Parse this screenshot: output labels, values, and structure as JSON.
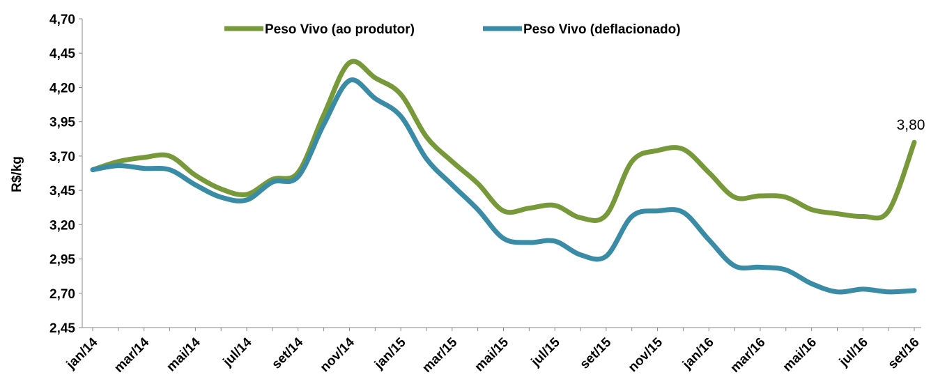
{
  "chart_data": {
    "type": "line",
    "y_label": "R$/kg",
    "categories": [
      "jan/14",
      null,
      "mar/14",
      null,
      "mai/14",
      null,
      "jul/14",
      null,
      "set/14",
      null,
      "nov/14",
      null,
      "jan/15",
      null,
      "mar/15",
      null,
      "mai/15",
      null,
      "jul/15",
      null,
      "set/15",
      null,
      "nov/15",
      null,
      "jan/16",
      null,
      "mar/16",
      null,
      "mai/16",
      null,
      "jul/16",
      null,
      "set/16"
    ],
    "series": [
      {
        "name": "Peso Vivo (ao produtor)",
        "color": "#77993a",
        "values": [
          3.6,
          3.66,
          3.69,
          3.7,
          3.56,
          3.46,
          3.42,
          3.53,
          3.58,
          4.0,
          4.38,
          4.27,
          4.15,
          3.84,
          3.66,
          3.5,
          3.3,
          3.32,
          3.34,
          3.25,
          3.27,
          3.66,
          3.74,
          3.75,
          3.58,
          3.4,
          3.41,
          3.4,
          3.31,
          3.28,
          3.26,
          3.3,
          3.8
        ],
        "value_labels": [
          null,
          null,
          null,
          null,
          null,
          null,
          null,
          null,
          null,
          null,
          null,
          null,
          null,
          null,
          null,
          null,
          null,
          null,
          null,
          null,
          null,
          null,
          null,
          null,
          null,
          null,
          null,
          null,
          null,
          null,
          null,
          null,
          "3,80"
        ]
      },
      {
        "name": "Peso Vivo (deflacionado)",
        "color": "#3a8ca6",
        "values": [
          3.6,
          3.63,
          3.61,
          3.6,
          3.49,
          3.4,
          3.38,
          3.51,
          3.55,
          3.93,
          4.25,
          4.12,
          3.99,
          3.68,
          3.49,
          3.31,
          3.1,
          3.07,
          3.08,
          2.98,
          2.97,
          3.26,
          3.3,
          3.29,
          3.09,
          2.9,
          2.89,
          2.87,
          2.77,
          2.71,
          2.73,
          2.71,
          2.72
        ]
      }
    ],
    "ylim": [
      2.45,
      4.7
    ],
    "yticks": [
      {
        "value": 2.45,
        "label": "2,45"
      },
      {
        "value": 2.7,
        "label": "2,70"
      },
      {
        "value": 2.95,
        "label": "2,95"
      },
      {
        "value": 3.2,
        "label": "3,20"
      },
      {
        "value": 3.45,
        "label": "3,45"
      },
      {
        "value": 3.7,
        "label": "3,70"
      },
      {
        "value": 3.95,
        "label": "3,95"
      },
      {
        "value": 4.2,
        "label": "4,20"
      },
      {
        "value": 4.45,
        "label": "4,45"
      },
      {
        "value": 4.7,
        "label": "4,70"
      }
    ],
    "grid": false,
    "legend": "top"
  }
}
